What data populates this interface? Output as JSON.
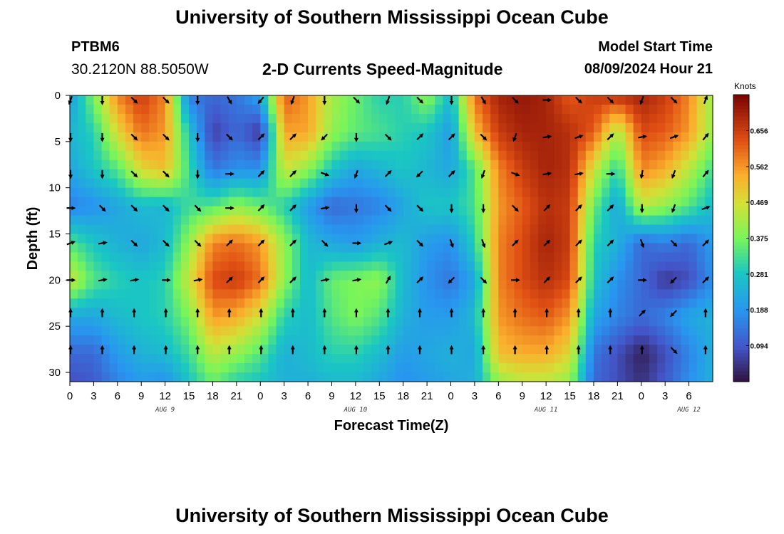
{
  "header": {
    "title": "University of Southern Mississippi Ocean Cube",
    "station": "PTBM6",
    "coords": "30.2120N  88.5050W",
    "plot_title": "2-D Currents Speed-Magnitude",
    "start_label": "Model Start Time",
    "start_value": "08/09/2024 Hour 21"
  },
  "footer": {
    "title": "University of Southern Mississippi Ocean Cube"
  },
  "colors": {
    "low": "#30123b",
    "mid": "#1ac7c2",
    "high": "#7a0403"
  },
  "chart_data": {
    "type": "heatmap",
    "title": "2-D Currents Speed-Magnitude",
    "xlabel": "Forecast Time(Z)",
    "ylabel": "Depth (ft)",
    "xlim": [
      0,
      81
    ],
    "ylim": [
      31,
      0
    ],
    "x_tick_labels": [
      "0",
      "3",
      "6",
      "9",
      "12",
      "15",
      "18",
      "21",
      "0",
      "3",
      "6",
      "9",
      "12",
      "15",
      "18",
      "21",
      "0",
      "3",
      "6",
      "9",
      "12",
      "15",
      "18",
      "21",
      "0",
      "3",
      "6"
    ],
    "y_ticks": [
      0,
      5,
      10,
      15,
      20,
      25,
      30
    ],
    "y_tick_labels": [
      "0",
      "5",
      "10",
      "15",
      "20",
      "25",
      "30"
    ],
    "date_labels": [
      {
        "text": "AUG 9",
        "hour": 12
      },
      {
        "text": "AUG 10",
        "hour": 36
      },
      {
        "text": "AUG 11",
        "hour": 60
      },
      {
        "text": "AUG 12",
        "hour": 78
      }
    ],
    "colorbar": {
      "label": "Knots",
      "min": 0.0,
      "max": 0.75,
      "tick_values": [
        0.094,
        0.188,
        0.281,
        0.375,
        0.469,
        0.562,
        0.656
      ],
      "tick_labels": [
        "0.094",
        "0.188",
        "0.281",
        "0.375",
        "0.469",
        "0.562",
        "0.656"
      ]
    },
    "speed_hours": [
      0,
      3,
      6,
      9,
      12,
      15,
      18,
      21,
      24,
      27,
      30,
      33,
      36,
      39,
      42,
      45,
      48,
      51,
      54,
      57,
      60,
      63,
      66,
      69,
      72,
      75,
      78,
      81
    ],
    "speed_depths": [
      0,
      4,
      8,
      12,
      16,
      20,
      24,
      28,
      31
    ],
    "speed_knots": [
      [
        0.2,
        0.38,
        0.58,
        0.66,
        0.58,
        0.15,
        0.12,
        0.14,
        0.22,
        0.62,
        0.56,
        0.42,
        0.36,
        0.3,
        0.3,
        0.4,
        0.26,
        0.6,
        0.7,
        0.72,
        0.7,
        0.62,
        0.66,
        0.68,
        0.7,
        0.66,
        0.58,
        0.4
      ],
      [
        0.25,
        0.3,
        0.48,
        0.6,
        0.56,
        0.28,
        0.06,
        0.12,
        0.05,
        0.55,
        0.55,
        0.4,
        0.35,
        0.33,
        0.3,
        0.28,
        0.2,
        0.52,
        0.66,
        0.7,
        0.7,
        0.68,
        0.62,
        0.42,
        0.64,
        0.62,
        0.56,
        0.4
      ],
      [
        0.22,
        0.28,
        0.34,
        0.48,
        0.52,
        0.32,
        0.14,
        0.18,
        0.18,
        0.46,
        0.4,
        0.28,
        0.22,
        0.25,
        0.28,
        0.25,
        0.22,
        0.34,
        0.58,
        0.66,
        0.7,
        0.68,
        0.46,
        0.3,
        0.58,
        0.54,
        0.44,
        0.32
      ],
      [
        0.16,
        0.18,
        0.22,
        0.26,
        0.25,
        0.32,
        0.34,
        0.4,
        0.36,
        0.3,
        0.2,
        0.12,
        0.14,
        0.16,
        0.22,
        0.28,
        0.28,
        0.33,
        0.56,
        0.62,
        0.68,
        0.66,
        0.36,
        0.22,
        0.44,
        0.4,
        0.34,
        0.26
      ],
      [
        0.34,
        0.28,
        0.24,
        0.22,
        0.26,
        0.4,
        0.58,
        0.6,
        0.56,
        0.4,
        0.26,
        0.22,
        0.2,
        0.24,
        0.26,
        0.2,
        0.18,
        0.3,
        0.58,
        0.64,
        0.7,
        0.66,
        0.3,
        0.24,
        0.12,
        0.15,
        0.12,
        0.2
      ],
      [
        0.46,
        0.34,
        0.3,
        0.28,
        0.3,
        0.46,
        0.64,
        0.66,
        0.6,
        0.4,
        0.26,
        0.36,
        0.38,
        0.4,
        0.26,
        0.18,
        0.14,
        0.22,
        0.58,
        0.64,
        0.68,
        0.64,
        0.28,
        0.18,
        0.12,
        0.05,
        0.08,
        0.18
      ],
      [
        0.22,
        0.22,
        0.26,
        0.28,
        0.3,
        0.38,
        0.56,
        0.54,
        0.46,
        0.3,
        0.26,
        0.34,
        0.38,
        0.34,
        0.24,
        0.2,
        0.2,
        0.26,
        0.56,
        0.6,
        0.62,
        0.56,
        0.22,
        0.16,
        0.12,
        0.16,
        0.22,
        0.24
      ],
      [
        0.12,
        0.12,
        0.2,
        0.24,
        0.26,
        0.32,
        0.44,
        0.4,
        0.34,
        0.24,
        0.26,
        0.3,
        0.3,
        0.26,
        0.2,
        0.22,
        0.24,
        0.22,
        0.52,
        0.54,
        0.54,
        0.48,
        0.14,
        0.08,
        0.02,
        0.08,
        0.16,
        0.24
      ],
      [
        0.08,
        0.1,
        0.16,
        0.2,
        0.18,
        0.28,
        0.36,
        0.3,
        0.28,
        0.24,
        0.24,
        0.26,
        0.26,
        0.22,
        0.18,
        0.2,
        0.22,
        0.24,
        0.4,
        0.44,
        0.44,
        0.4,
        0.12,
        0.08,
        0.04,
        0.1,
        0.18,
        0.24
      ]
    ],
    "arrow_hours": [
      0,
      4,
      8,
      12,
      16,
      20,
      24,
      28,
      32,
      36,
      40,
      44,
      48,
      52,
      56,
      60,
      64,
      68,
      72,
      76,
      80
    ],
    "arrow_depths": [
      0.5,
      4.5,
      8.5,
      12.2,
      16,
      20,
      23.6,
      27.6
    ],
    "arrow_directions_deg": [
      [
        200,
        180,
        135,
        135,
        180,
        150,
        220,
        200,
        180,
        135,
        200,
        135,
        180,
        150,
        135,
        90,
        135,
        135,
        200,
        135,
        20
      ],
      [
        180,
        180,
        135,
        135,
        180,
        135,
        45,
        45,
        225,
        180,
        135,
        45,
        45,
        135,
        200,
        80,
        70,
        45,
        80,
        70,
        40
      ],
      [
        180,
        180,
        135,
        135,
        180,
        90,
        45,
        45,
        110,
        200,
        45,
        225,
        45,
        200,
        110,
        80,
        80,
        90,
        190,
        200,
        40
      ],
      [
        90,
        135,
        135,
        135,
        135,
        90,
        45,
        45,
        80,
        180,
        135,
        135,
        180,
        180,
        135,
        45,
        45,
        45,
        180,
        200,
        70
      ],
      [
        70,
        80,
        135,
        135,
        135,
        45,
        45,
        45,
        135,
        90,
        70,
        135,
        160,
        160,
        45,
        45,
        45,
        45,
        160,
        135,
        45
      ],
      [
        90,
        80,
        80,
        90,
        80,
        45,
        45,
        45,
        80,
        80,
        30,
        45,
        225,
        135,
        90,
        45,
        45,
        45,
        90,
        225,
        45
      ],
      [
        0,
        0,
        0,
        0,
        0,
        0,
        0,
        0,
        0,
        0,
        0,
        0,
        0,
        0,
        0,
        0,
        0,
        0,
        45,
        225,
        0
      ],
      [
        0,
        0,
        0,
        0,
        0,
        0,
        0,
        0,
        0,
        0,
        0,
        0,
        0,
        0,
        0,
        0,
        0,
        0,
        0,
        135,
        0
      ]
    ]
  }
}
